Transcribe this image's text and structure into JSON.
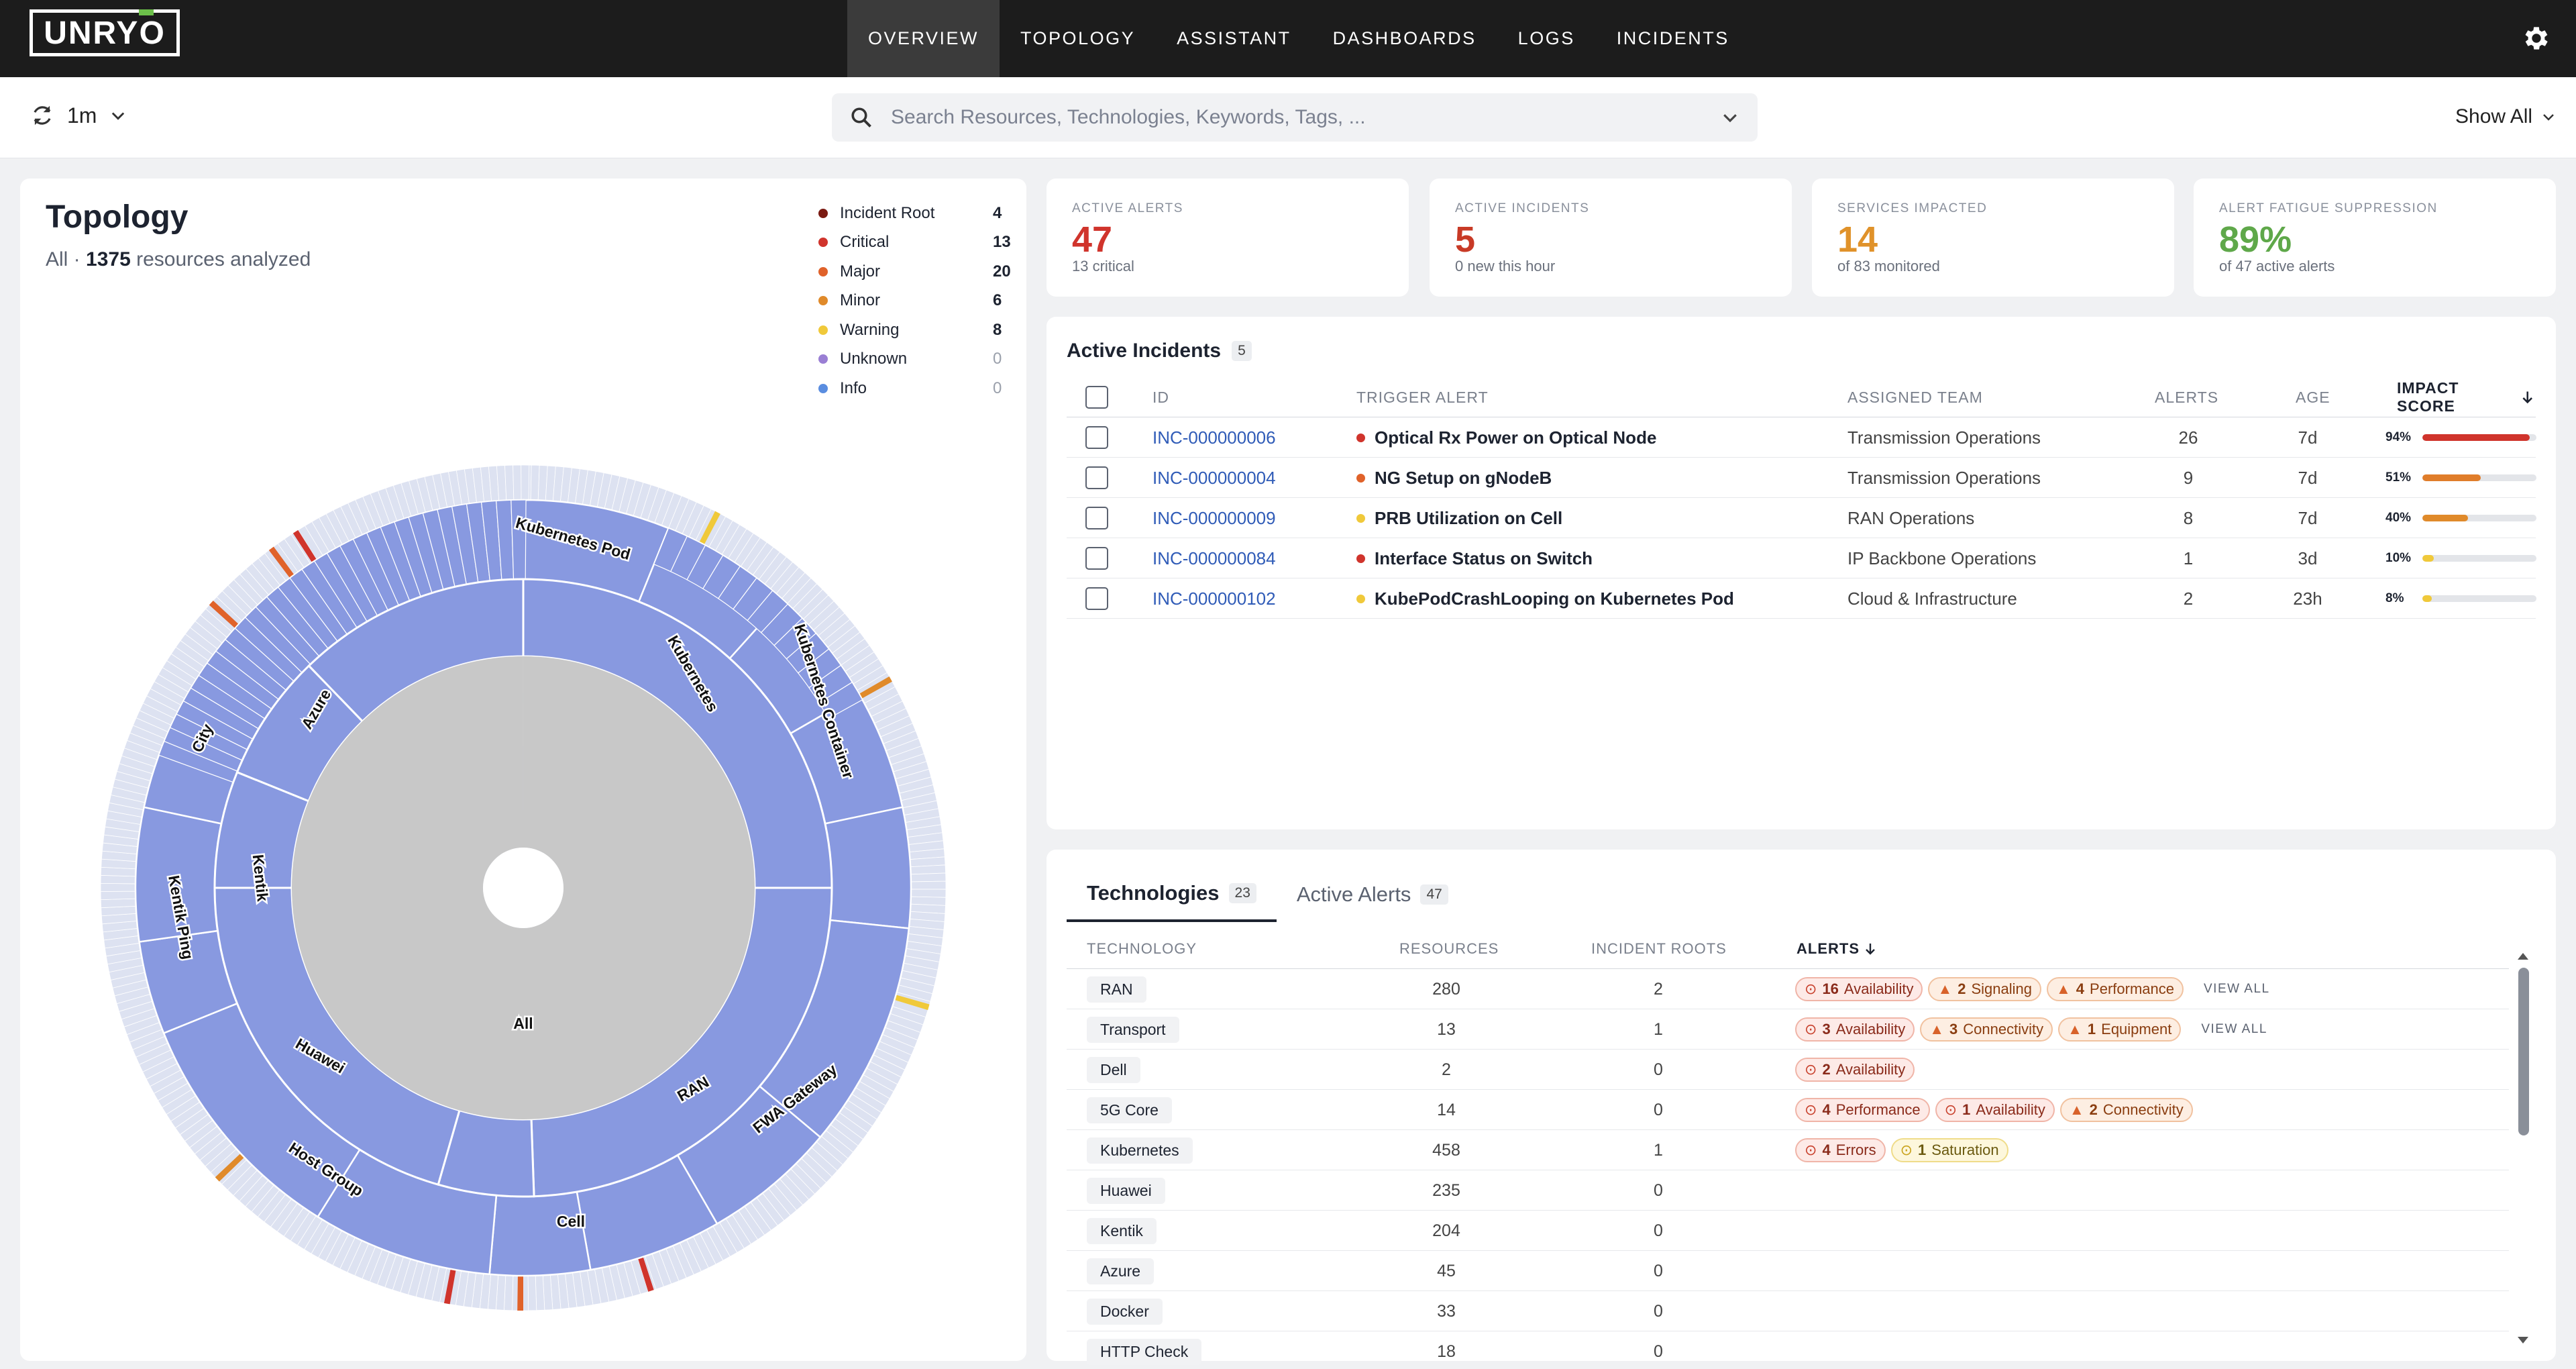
{
  "app": {
    "logo": "UNRYO",
    "nav": [
      "OVERVIEW",
      "TOPOLOGY",
      "ASSISTANT",
      "DASHBOARDS",
      "LOGS",
      "INCIDENTS"
    ],
    "active_nav": "OVERVIEW"
  },
  "filters": {
    "refresh_interval": "1m",
    "search_placeholder": "Search Resources, Technologies, Keywords, Tags, ...",
    "show_all": "Show All"
  },
  "topology": {
    "title": "Topology",
    "scope": "All",
    "resource_count": "1375",
    "resources_suffix": "resources analyzed",
    "legend": [
      {
        "label": "Incident Root",
        "count": "4",
        "color": "#7a1a12"
      },
      {
        "label": "Critical",
        "count": "13",
        "color": "#d0342c"
      },
      {
        "label": "Major",
        "count": "20",
        "color": "#e0622a"
      },
      {
        "label": "Minor",
        "count": "6",
        "color": "#e08a2a"
      },
      {
        "label": "Warning",
        "count": "8",
        "color": "#f0c93a"
      },
      {
        "label": "Unknown",
        "count": "0",
        "color": "#9a7fd4"
      },
      {
        "label": "Info",
        "count": "0",
        "color": "#5a8de0"
      }
    ],
    "center_label": "All",
    "labels": [
      "Kubernetes Pod",
      "Kubernetes",
      "Kubernetes Container",
      "Azure",
      "City",
      "Kentik",
      "Kentik Ping",
      "Huawei",
      "Host Group",
      "Cell",
      "RAN",
      "FWA Gateway"
    ]
  },
  "kpis": [
    {
      "label": "ACTIVE ALERTS",
      "value": "47",
      "sub": "13 critical",
      "color": "#d0342c"
    },
    {
      "label": "ACTIVE INCIDENTS",
      "value": "5",
      "sub": "0 new this hour",
      "color": "#c83a26"
    },
    {
      "label": "SERVICES IMPACTED",
      "value": "14",
      "sub": "of 83 monitored",
      "color": "#e0922a"
    },
    {
      "label": "ALERT FATIGUE SUPPRESSION",
      "value": "89%",
      "sub": "of 47 active alerts",
      "color": "#5fa84a"
    }
  ],
  "incidents": {
    "title": "Active Incidents",
    "count": "5",
    "headers": {
      "id": "ID",
      "trigger": "TRIGGER ALERT",
      "team": "ASSIGNED TEAM",
      "alerts": "ALERTS",
      "age": "AGE",
      "impact": "IMPACT SCORE"
    },
    "rows": [
      {
        "id": "INC-000000006",
        "trigger": "Optical Rx Power on Optical Node",
        "sev": "#d0342c",
        "team": "Transmission Operations",
        "alerts": "26",
        "age": "7d",
        "impact": "94%",
        "impact_value": 0.94,
        "impact_color": "#d0342c"
      },
      {
        "id": "INC-000000004",
        "trigger": "NG Setup on gNodeB",
        "sev": "#e0622a",
        "team": "Transmission Operations",
        "alerts": "9",
        "age": "7d",
        "impact": "51%",
        "impact_value": 0.51,
        "impact_color": "#e07d2a"
      },
      {
        "id": "INC-000000009",
        "trigger": "PRB Utilization on Cell",
        "sev": "#f0c93a",
        "team": "RAN Operations",
        "alerts": "8",
        "age": "7d",
        "impact": "40%",
        "impact_value": 0.4,
        "impact_color": "#e08a2a"
      },
      {
        "id": "INC-000000084",
        "trigger": "Interface Status on Switch",
        "sev": "#d0342c",
        "team": "IP Backbone Operations",
        "alerts": "1",
        "age": "3d",
        "impact": "10%",
        "impact_value": 0.1,
        "impact_color": "#f0c93a"
      },
      {
        "id": "INC-000000102",
        "trigger": "KubePodCrashLooping on Kubernetes Pod",
        "sev": "#f0c93a",
        "team": "Cloud & Infrastructure",
        "alerts": "2",
        "age": "23h",
        "impact": "8%",
        "impact_value": 0.08,
        "impact_color": "#f0c93a"
      }
    ]
  },
  "technologies": {
    "tabs": [
      {
        "label": "Technologies",
        "count": "23"
      },
      {
        "label": "Active Alerts",
        "count": "47"
      }
    ],
    "headers": {
      "technology": "TECHNOLOGY",
      "resources": "RESOURCES",
      "roots": "INCIDENT ROOTS",
      "alerts": "ALERTS"
    },
    "view_all": "VIEW ALL",
    "rows": [
      {
        "name": "RAN",
        "resources": "280",
        "roots": "2",
        "view_all": true,
        "chips": [
          {
            "kind": "crit",
            "icon": "alert-circle-icon",
            "n": "16",
            "t": "Availability"
          },
          {
            "kind": "major",
            "icon": "warning-triangle-icon",
            "n": "2",
            "t": "Signaling"
          },
          {
            "kind": "major",
            "icon": "warning-triangle-icon",
            "n": "4",
            "t": "Performance"
          }
        ]
      },
      {
        "name": "Transport",
        "resources": "13",
        "roots": "1",
        "view_all": true,
        "chips": [
          {
            "kind": "crit",
            "icon": "alert-circle-icon",
            "n": "3",
            "t": "Availability"
          },
          {
            "kind": "major",
            "icon": "warning-triangle-icon",
            "n": "3",
            "t": "Connectivity"
          },
          {
            "kind": "major",
            "icon": "warning-triangle-icon",
            "n": "1",
            "t": "Equipment"
          }
        ]
      },
      {
        "name": "Dell",
        "resources": "2",
        "roots": "0",
        "chips": [
          {
            "kind": "crit",
            "icon": "alert-circle-icon",
            "n": "2",
            "t": "Availability"
          }
        ]
      },
      {
        "name": "5G Core",
        "resources": "14",
        "roots": "0",
        "chips": [
          {
            "kind": "crit",
            "icon": "alert-circle-icon",
            "n": "4",
            "t": "Performance"
          },
          {
            "kind": "crit",
            "icon": "alert-circle-icon",
            "n": "1",
            "t": "Availability"
          },
          {
            "kind": "major",
            "icon": "warning-triangle-icon",
            "n": "2",
            "t": "Connectivity"
          }
        ]
      },
      {
        "name": "Kubernetes",
        "resources": "458",
        "roots": "1",
        "chips": [
          {
            "kind": "crit",
            "icon": "alert-circle-icon",
            "n": "4",
            "t": "Errors"
          },
          {
            "kind": "warn",
            "icon": "alert-circle-icon",
            "n": "1",
            "t": "Saturation"
          }
        ]
      },
      {
        "name": "Huawei",
        "resources": "235",
        "roots": "0",
        "chips": []
      },
      {
        "name": "Kentik",
        "resources": "204",
        "roots": "0",
        "chips": []
      },
      {
        "name": "Azure",
        "resources": "45",
        "roots": "0",
        "chips": []
      },
      {
        "name": "Docker",
        "resources": "33",
        "roots": "0",
        "chips": []
      },
      {
        "name": "HTTP Check",
        "resources": "18",
        "roots": "0",
        "chips": []
      }
    ]
  }
}
